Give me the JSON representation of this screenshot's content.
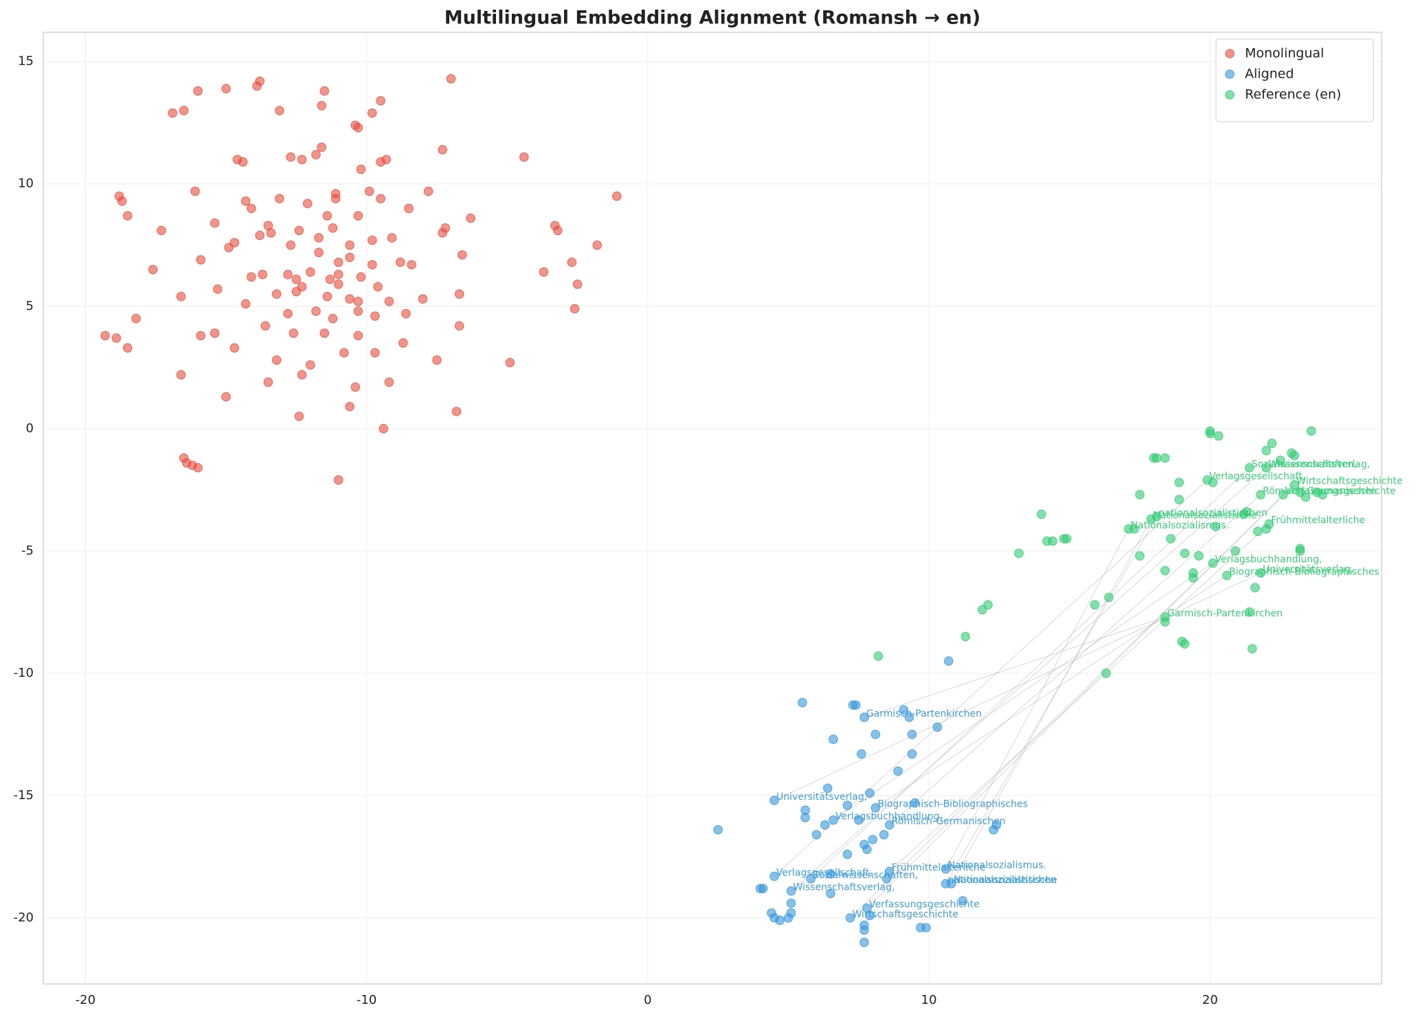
{
  "chart_data": {
    "type": "scatter",
    "title": "Multilingual Embedding Alignment (Romansh → en)",
    "xlim": [
      -21.5,
      26.1
    ],
    "ylim": [
      -22.7,
      16.2
    ],
    "xticks": [
      -20,
      -10,
      0,
      10,
      20
    ],
    "yticks": [
      15,
      10,
      5,
      0,
      -5,
      -10,
      -15,
      -20
    ],
    "grid": true,
    "legend": "upper right",
    "series": [
      {
        "name": "Monolingual",
        "color": "#e74c3c",
        "x": [
          -19.3,
          -18.9,
          -18.5,
          -18.2,
          -18.8,
          -18.7,
          -18.5,
          -17.3,
          -17.6,
          -16.9,
          -16.5,
          -16.0,
          -16.6,
          -16.6,
          -16.5,
          -16.4,
          -16.2,
          -16.0,
          -16.1,
          -15.9,
          -15.9,
          -15.4,
          -15.4,
          -15.3,
          -15.0,
          -15.0,
          -14.9,
          -14.7,
          -14.7,
          -14.6,
          -14.4,
          -14.3,
          -14.3,
          -14.1,
          -14.1,
          -13.9,
          -13.8,
          -13.8,
          -13.7,
          -13.6,
          -13.5,
          -13.5,
          -13.4,
          -13.2,
          -13.2,
          -13.1,
          -13.1,
          -12.8,
          -12.8,
          -12.7,
          -12.7,
          -12.6,
          -12.5,
          -12.5,
          -12.4,
          -12.4,
          -12.3,
          -12.3,
          -12.3,
          -12.1,
          -12.0,
          -12.0,
          -11.8,
          -11.8,
          -11.7,
          -11.7,
          -11.6,
          -11.6,
          -11.5,
          -11.5,
          -11.4,
          -11.4,
          -11.3,
          -11.2,
          -11.2,
          -11.1,
          -11.1,
          -11.0,
          -11.0,
          -11.0,
          -11.0,
          -10.8,
          -10.6,
          -10.6,
          -10.6,
          -10.6,
          -10.4,
          -10.4,
          -10.3,
          -10.3,
          -10.3,
          -10.3,
          -10.3,
          -10.2,
          -10.2,
          -9.9,
          -9.8,
          -9.8,
          -9.8,
          -9.7,
          -9.7,
          -9.6,
          -9.5,
          -9.5,
          -9.5,
          -9.4,
          -9.3,
          -9.2,
          -9.2,
          -9.1,
          -8.8,
          -8.7,
          -8.6,
          -8.5,
          -8.4,
          -8.0,
          -7.8,
          -7.5,
          -7.3,
          -7.3,
          -7.2,
          -7.0,
          -6.8,
          -6.7,
          -6.7,
          -6.6,
          -6.3,
          -4.9,
          -4.4,
          -3.7,
          -3.3,
          -3.2,
          -2.7,
          -2.6,
          -2.5,
          -1.8,
          -1.1
        ],
        "y": [
          3.8,
          3.7,
          3.3,
          4.5,
          9.5,
          9.3,
          8.7,
          8.1,
          6.5,
          12.9,
          13.0,
          13.8,
          5.4,
          2.2,
          -1.2,
          -1.4,
          -1.5,
          -1.6,
          9.7,
          6.9,
          3.8,
          3.9,
          8.4,
          5.7,
          1.3,
          13.9,
          7.4,
          7.6,
          3.3,
          11.0,
          10.9,
          9.3,
          5.1,
          6.2,
          9.0,
          14.0,
          14.2,
          7.9,
          6.3,
          4.2,
          1.9,
          8.3,
          8.0,
          5.5,
          2.8,
          9.4,
          13.0,
          4.7,
          6.3,
          11.1,
          7.5,
          3.9,
          5.6,
          6.1,
          8.1,
          0.5,
          2.2,
          5.8,
          11.0,
          9.2,
          6.4,
          2.6,
          4.8,
          11.2,
          7.8,
          7.2,
          11.5,
          13.2,
          13.8,
          3.9,
          8.7,
          5.4,
          6.1,
          8.2,
          4.5,
          9.4,
          9.6,
          6.3,
          6.8,
          5.9,
          -2.1,
          3.1,
          0.9,
          7.5,
          7.0,
          5.3,
          1.7,
          12.4,
          12.3,
          8.7,
          5.2,
          4.8,
          3.8,
          10.6,
          6.2,
          9.7,
          12.9,
          6.7,
          7.7,
          4.6,
          3.1,
          5.8,
          13.4,
          10.9,
          9.4,
          0.0,
          11.0,
          1.9,
          5.2,
          7.8,
          6.8,
          3.5,
          4.7,
          9.0,
          6.7,
          5.3,
          9.7,
          2.8,
          11.4,
          8.0,
          8.2,
          14.3,
          0.7,
          5.5,
          4.2,
          7.1,
          8.6,
          2.7,
          11.1,
          6.4,
          8.3,
          8.1,
          6.8,
          4.9,
          5.9,
          7.5,
          9.5
        ]
      },
      {
        "name": "Aligned",
        "color": "#3498db",
        "x": [
          2.5,
          4.0,
          4.1,
          4.4,
          4.5,
          4.7,
          5.0,
          5.1,
          5.1,
          5.1,
          4.5,
          4.5,
          5.5,
          5.6,
          5.6,
          5.8,
          6.0,
          6.3,
          6.4,
          6.5,
          6.5,
          6.6,
          6.6,
          7.1,
          7.1,
          7.2,
          7.3,
          7.4,
          7.5,
          7.6,
          7.7,
          7.7,
          7.7,
          7.7,
          7.7,
          7.8,
          7.8,
          7.9,
          7.9,
          8.0,
          8.1,
          8.1,
          8.4,
          8.5,
          8.6,
          8.6,
          8.9,
          9.1,
          9.3,
          9.4,
          9.4,
          9.5,
          9.7,
          9.9,
          10.3,
          10.6,
          10.6,
          10.7,
          10.8,
          11.2,
          12.3,
          12.4
        ],
        "y": [
          -16.4,
          -18.8,
          -18.8,
          -19.8,
          -20.0,
          -20.1,
          -20.0,
          -19.8,
          -19.4,
          -18.9,
          -18.3,
          -15.2,
          -11.2,
          -15.6,
          -15.9,
          -18.4,
          -16.6,
          -16.2,
          -14.7,
          -19.0,
          -18.2,
          -12.7,
          -16.0,
          -15.4,
          -17.4,
          -20.0,
          -11.3,
          -11.3,
          -16.0,
          -13.3,
          -11.8,
          -17.0,
          -20.3,
          -20.5,
          -21.0,
          -17.2,
          -19.6,
          -14.9,
          -19.9,
          -16.8,
          -15.5,
          -12.5,
          -16.6,
          -18.4,
          -18.1,
          -16.2,
          -14.0,
          -11.5,
          -11.8,
          -12.5,
          -13.3,
          -15.3,
          -20.4,
          -20.4,
          -12.2,
          -18.0,
          -18.6,
          -9.5,
          -18.6,
          -19.3,
          -16.4,
          -16.2
        ],
        "labels": [
          null,
          null,
          null,
          null,
          null,
          null,
          null,
          null,
          null,
          "Wissenschaftsverlag,",
          "Verlagsgesellschaft,",
          "Universitätsverlag,",
          null,
          null,
          null,
          "Sozialwissenschaften,",
          null,
          null,
          null,
          null,
          null,
          null,
          "Verlagsbuchhandlung,",
          null,
          null,
          "Wirtschaftsgeschichte",
          null,
          null,
          null,
          null,
          "Garmisch-Partenkirchen",
          null,
          null,
          null,
          null,
          null,
          "Verfassungsgeschichte",
          null,
          null,
          null,
          "Biographisch-Bibliographisches",
          null,
          null,
          null,
          "Frühmittelalterliche",
          "Römisch-Germanischen",
          null,
          null,
          null,
          null,
          null,
          null,
          null,
          null,
          null,
          "Nationalsozialismus.",
          "nationalsozialistischen",
          null,
          "Nationalsozialistische",
          null,
          null,
          null
        ]
      },
      {
        "name": "Reference (en)",
        "color": "#2ecc71",
        "x": [
          8.2,
          11.3,
          11.9,
          12.1,
          13.2,
          14.0,
          14.2,
          14.4,
          14.8,
          14.9,
          15.9,
          16.3,
          16.4,
          17.1,
          17.3,
          17.5,
          17.5,
          17.9,
          18.1,
          18.0,
          18.1,
          18.4,
          18.4,
          18.4,
          18.4,
          18.6,
          18.9,
          18.9,
          19.0,
          19.1,
          19.1,
          19.4,
          19.4,
          19.6,
          19.9,
          20.0,
          20.0,
          20.1,
          20.2,
          20.1,
          20.3,
          20.6,
          20.9,
          21.4,
          21.2,
          21.3,
          21.4,
          21.5,
          21.6,
          21.7,
          21.8,
          21.8,
          22.0,
          22.0,
          22.0,
          22.1,
          22.2,
          22.5,
          22.6,
          22.9,
          23.0,
          23.0,
          23.2,
          23.2,
          23.2,
          23.4,
          23.6,
          23.8,
          24.0
        ],
        "y": [
          -9.3,
          -8.5,
          -7.4,
          -7.2,
          -5.1,
          -3.5,
          -4.6,
          -4.6,
          -4.5,
          -4.5,
          -7.2,
          -10.0,
          -6.9,
          -4.1,
          -4.1,
          -2.7,
          -5.2,
          -3.7,
          -3.6,
          -1.2,
          -1.2,
          -1.2,
          -5.8,
          -7.7,
          -7.9,
          -4.5,
          -2.2,
          -2.9,
          -8.7,
          -8.8,
          -5.1,
          -5.9,
          -6.1,
          -5.2,
          -2.1,
          -0.1,
          -0.2,
          -2.2,
          -4.0,
          -5.5,
          -0.3,
          -6.0,
          -5.0,
          -1.6,
          -3.5,
          -3.4,
          -7.5,
          -9.0,
          -6.5,
          -4.2,
          -5.9,
          -2.7,
          -0.9,
          -4.1,
          -1.6,
          -3.9,
          -0.6,
          -1.3,
          -2.7,
          -1.0,
          -1.1,
          -2.3,
          -2.6,
          -4.9,
          -5.0,
          -2.8,
          -0.1,
          -2.6,
          -2.7
        ],
        "labels": [
          null,
          null,
          null,
          null,
          null,
          null,
          null,
          null,
          null,
          null,
          null,
          null,
          null,
          "Nationalsozialismus.",
          null,
          null,
          null,
          "Nationalsozialistische",
          "nationalsozialistischen",
          null,
          null,
          null,
          null,
          "Garmisch-Partenkirchen",
          null,
          null,
          null,
          null,
          null,
          null,
          null,
          null,
          null,
          null,
          "Verlagsgesellschaft,",
          null,
          null,
          null,
          null,
          "Verlagsbuchhandlung,",
          null,
          "Biographisch-Bibliographisches",
          null,
          "Sozialwissenschaften,",
          null,
          null,
          null,
          null,
          null,
          null,
          "Universitätsverlag,",
          "Römisch-Germanischen",
          null,
          null,
          "Wissenschaftsverlag,",
          "Frühmittelalterliche",
          null,
          null,
          "Verfassungsgeschichte",
          null,
          null,
          "Wirtschaftsgeschichte",
          null,
          null,
          null,
          null,
          null,
          null,
          null
        ]
      }
    ]
  }
}
